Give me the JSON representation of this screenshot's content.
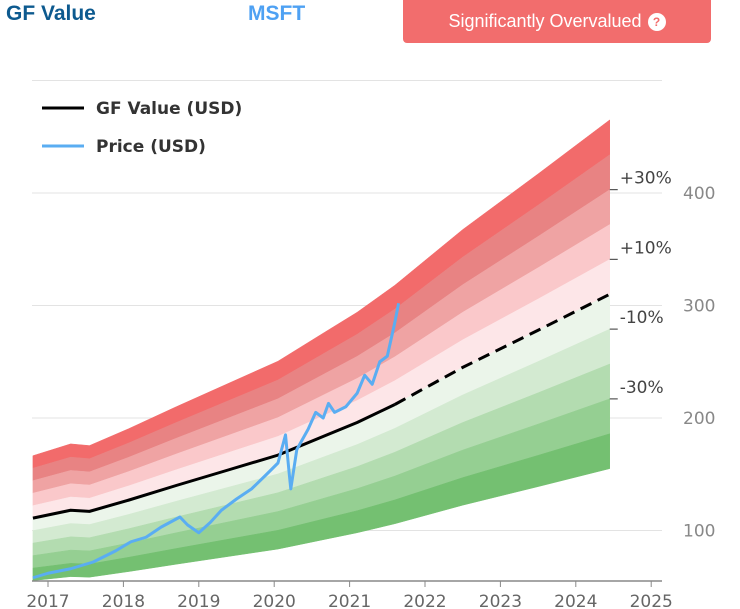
{
  "header": {
    "title": "GF Value",
    "ticker": "MSFT",
    "status": "Significantly Overvalued",
    "help_icon": "question-circle-icon"
  },
  "colors": {
    "title": "#0d5a8f",
    "ticker": "#4ea1f3",
    "badge": "#f26d6d",
    "gf_line": "#000000",
    "price_line": "#5aadf2",
    "bands": [
      "#f26b6b",
      "#e88383",
      "#efa3a3",
      "#fac8ca",
      "#fde6e8",
      "#ebf5ea",
      "#d3ead1",
      "#b3dcb0",
      "#95cf92",
      "#74c071"
    ]
  },
  "chart_data": {
    "type": "line",
    "title": "",
    "xlabel": "",
    "ylabel": "",
    "xlim": [
      2016.8,
      2025.05
    ],
    "ylim": [
      55,
      500
    ],
    "x_ticks": [
      "2017",
      "2018",
      "2019",
      "2020",
      "2021",
      "2022",
      "2023",
      "2024",
      "2025"
    ],
    "y_ticks": [
      100,
      200,
      300,
      400
    ],
    "grid": "horizontal",
    "legend": {
      "placement": "top-left",
      "entries": [
        "GF Value (USD)",
        "Price (USD)"
      ]
    },
    "band_multipliers": [
      1.5,
      1.4,
      1.3,
      1.2,
      1.1,
      1.0,
      0.9,
      0.8,
      0.7,
      0.6,
      0.5
    ],
    "band_labels": [
      {
        "label": "+30%",
        "multiplier": 1.3
      },
      {
        "label": "+10%",
        "multiplier": 1.1
      },
      {
        "label": "-10%",
        "multiplier": 0.9
      },
      {
        "label": "-30%",
        "multiplier": 0.7
      }
    ],
    "series": [
      {
        "name": "GF Value (USD)",
        "style": "solid",
        "x": [
          2016.8,
          2017.3,
          2017.55,
          2018.07,
          2018.7,
          2019.4,
          2020.05,
          2020.7,
          2021.1,
          2021.6
        ],
        "y": [
          111,
          118,
          117,
          127,
          140,
          154,
          167,
          185,
          196,
          212
        ]
      },
      {
        "name": "GF Value (USD)",
        "style": "dashed",
        "x": [
          2021.6,
          2022.5,
          2023.5,
          2024.45
        ],
        "y": [
          212,
          245,
          278,
          310
        ]
      },
      {
        "name": "Price (USD)",
        "style": "solid",
        "x": [
          2016.8,
          2017.0,
          2017.3,
          2017.6,
          2017.9,
          2018.1,
          2018.3,
          2018.5,
          2018.75,
          2018.85,
          2019.0,
          2019.15,
          2019.3,
          2019.5,
          2019.7,
          2019.9,
          2020.05,
          2020.15,
          2020.2,
          2020.22,
          2020.3,
          2020.45,
          2020.55,
          2020.65,
          2020.72,
          2020.8,
          2020.95,
          2021.1,
          2021.2,
          2021.3,
          2021.4,
          2021.5,
          2021.6,
          2021.65
        ],
        "y": [
          58,
          62,
          66,
          72,
          82,
          90,
          94,
          103,
          112,
          105,
          98,
          107,
          118,
          128,
          137,
          150,
          160,
          185,
          150,
          137,
          172,
          190,
          205,
          200,
          213,
          205,
          210,
          222,
          238,
          230,
          250,
          255,
          285,
          302
        ]
      }
    ]
  }
}
